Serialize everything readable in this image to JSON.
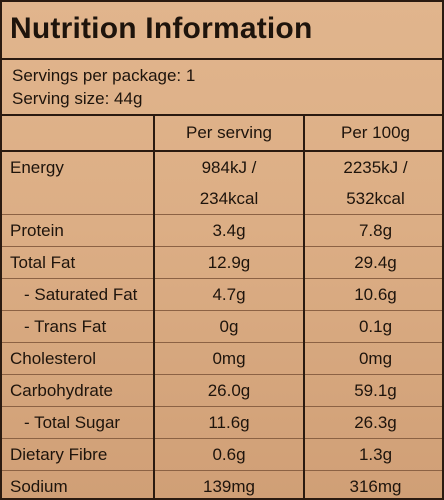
{
  "panel": {
    "title": "Nutrition Information",
    "servings_per_package": "Servings per package: 1",
    "serving_size": "Serving size: 44g"
  },
  "table": {
    "headers": [
      "",
      "Per serving",
      "Per 100g"
    ],
    "rows": [
      {
        "name": "Energy",
        "per_serving": "984kJ /",
        "per_100g": "2235kJ /"
      },
      {
        "name": "",
        "per_serving": "234kcal",
        "per_100g": "532kcal"
      },
      {
        "name": "Protein",
        "per_serving": "3.4g",
        "per_100g": "7.8g"
      },
      {
        "name": "Total Fat",
        "per_serving": "12.9g",
        "per_100g": "29.4g"
      },
      {
        "name": "- Saturated Fat",
        "per_serving": "4.7g",
        "per_100g": "10.6g"
      },
      {
        "name": "- Trans Fat",
        "per_serving": "0g",
        "per_100g": "0.1g"
      },
      {
        "name": "Cholesterol",
        "per_serving": "0mg",
        "per_100g": "0mg"
      },
      {
        "name": "Carbohydrate",
        "per_serving": "26.0g",
        "per_100g": "59.1g"
      },
      {
        "name": "- Total Sugar",
        "per_serving": "11.6g",
        "per_100g": "26.3g"
      },
      {
        "name": "Dietary Fibre",
        "per_serving": "0.6g",
        "per_100g": "1.3g"
      },
      {
        "name": "Sodium",
        "per_serving": "139mg",
        "per_100g": "316mg"
      }
    ]
  }
}
